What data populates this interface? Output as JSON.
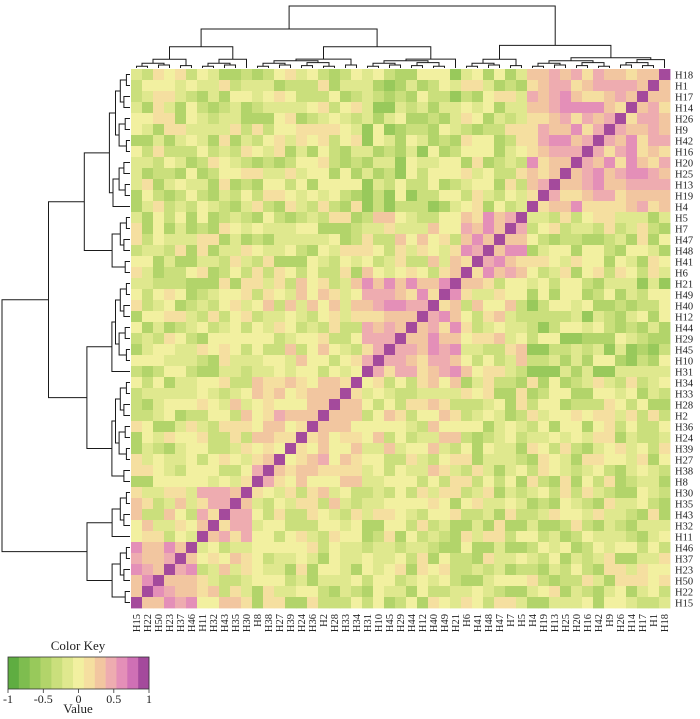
{
  "chart_data": {
    "type": "heatmap",
    "title": "",
    "column_labels": [
      "H15",
      "H22",
      "H50",
      "H23",
      "H37",
      "H46",
      "H11",
      "H32",
      "H43",
      "H35",
      "H30",
      "H8",
      "H38",
      "H27",
      "H39",
      "H24",
      "H36",
      "H2",
      "H28",
      "H33",
      "H34",
      "H31",
      "H10",
      "H45",
      "H29",
      "H44",
      "H12",
      "H40",
      "H49",
      "H21",
      "H6",
      "H41",
      "H48",
      "H47",
      "H7",
      "H5",
      "H4",
      "H19",
      "H13",
      "H25",
      "H20",
      "H16",
      "H42",
      "H9",
      "H26",
      "H14",
      "H17",
      "H1",
      "H18"
    ],
    "row_labels_top_to_bottom": [
      "H18",
      "H1",
      "H17",
      "H14",
      "H26",
      "H9",
      "H42",
      "H16",
      "H20",
      "H25",
      "H13",
      "H19",
      "H4",
      "H5",
      "H7",
      "H47",
      "H48",
      "H41",
      "H6",
      "H21",
      "H49",
      "H40",
      "H12",
      "H44",
      "H29",
      "H45",
      "H10",
      "H31",
      "H34",
      "H33",
      "H28",
      "H2",
      "H36",
      "H24",
      "H39",
      "H27",
      "H38",
      "H8",
      "H30",
      "H35",
      "H43",
      "H32",
      "H11",
      "H46",
      "H37",
      "H23",
      "H50",
      "H22",
      "H15"
    ],
    "matrix": "symmetric correlation matrix, diagonal = 1, cells estimated from color",
    "clusters": [
      {
        "labels": [
          "H15",
          "H22",
          "H50",
          "H23",
          "H37",
          "H46"
        ],
        "within": 0.5
      },
      {
        "labels": [
          "H11",
          "H32",
          "H43",
          "H35",
          "H30"
        ],
        "within": 0.3
      },
      {
        "labels": [
          "H8",
          "H38",
          "H27",
          "H39",
          "H24",
          "H36",
          "H2",
          "H28",
          "H33",
          "H34"
        ],
        "within": 0.2
      },
      {
        "labels": [
          "H31",
          "H10",
          "H45",
          "H29",
          "H44",
          "H12",
          "H40",
          "H49",
          "H21"
        ],
        "within": 0.45
      },
      {
        "labels": [
          "H6",
          "H41",
          "H48",
          "H47",
          "H7",
          "H5"
        ],
        "within": 0.4
      },
      {
        "labels": [
          "H4",
          "H19",
          "H13",
          "H25",
          "H20",
          "H16",
          "H42",
          "H9",
          "H26",
          "H14",
          "H17",
          "H1",
          "H18"
        ],
        "within": 0.4
      }
    ],
    "color_scale": {
      "min": -1,
      "max": 1,
      "stops": [
        "#5fad41",
        "#7ebd4f",
        "#98c95b",
        "#b2d46a",
        "#cadf7c",
        "#dfe88e",
        "#f2f0a0",
        "#f5dfa0",
        "#f2c6a0",
        "#eeacb0",
        "#e48fb8",
        "#cf70b5",
        "#a44a9c"
      ]
    },
    "color_key": {
      "title": "Color Key",
      "xlabel": "Value",
      "ticks": [
        "-1",
        "-0.5",
        "0",
        "0.5",
        "1"
      ]
    }
  }
}
